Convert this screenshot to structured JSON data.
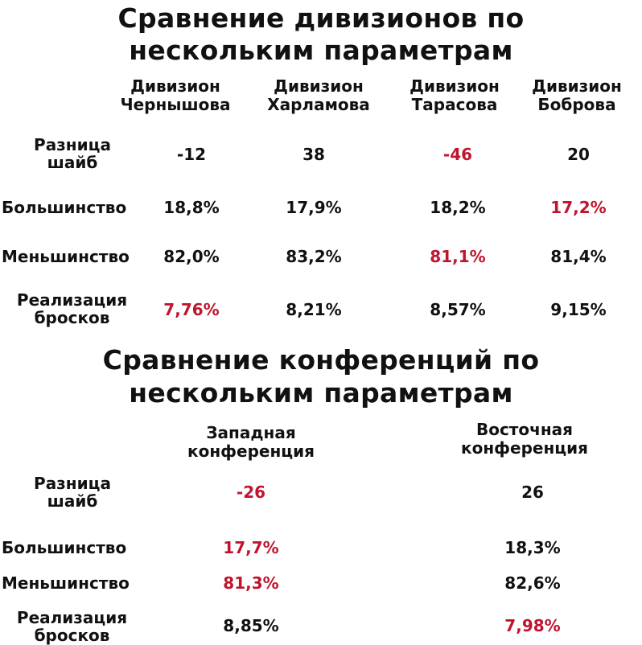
{
  "highlight_color": "#c0152f",
  "divisions": {
    "title_line1": "Сравнение дивизионов по",
    "title_line2": "нескольким параметрам",
    "columns": [
      {
        "line1": "Дивизион",
        "line2": "Чернышова"
      },
      {
        "line1": "Дивизион",
        "line2": "Харламова"
      },
      {
        "line1": "Дивизион",
        "line2": "Тарасова"
      },
      {
        "line1": "Дивизион",
        "line2": "Боброва"
      }
    ],
    "rows": [
      {
        "label_line1": "Разница",
        "label_line2": "шайб",
        "values": [
          "-12",
          "38",
          "-46",
          "20"
        ],
        "highlight": [
          false,
          false,
          true,
          false
        ]
      },
      {
        "label_line1": "Большинство",
        "label_line2": "",
        "values": [
          "18,8%",
          "17,9%",
          "18,2%",
          "17,2%"
        ],
        "highlight": [
          false,
          false,
          false,
          true
        ]
      },
      {
        "label_line1": "Меньшинство",
        "label_line2": "",
        "values": [
          "82,0%",
          "83,2%",
          "81,1%",
          "81,4%"
        ],
        "highlight": [
          false,
          false,
          true,
          false
        ]
      },
      {
        "label_line1": "Реализация",
        "label_line2": "бросков",
        "values": [
          "7,76%",
          "8,21%",
          "8,57%",
          "9,15%"
        ],
        "highlight": [
          true,
          false,
          false,
          false
        ]
      }
    ]
  },
  "conferences": {
    "title_line1": "Сравнение конференций по",
    "title_line2": "нескольким параметрам",
    "columns": [
      {
        "line1": "Западная",
        "line2": "конференция"
      },
      {
        "line1": "Восточная",
        "line2": "конференция"
      }
    ],
    "rows": [
      {
        "label_line1": "Разница",
        "label_line2": "шайб",
        "values": [
          "-26",
          "26"
        ],
        "highlight": [
          true,
          false
        ]
      },
      {
        "label_line1": "Большинство",
        "label_line2": "",
        "values": [
          "17,7%",
          "18,3%"
        ],
        "highlight": [
          true,
          false
        ]
      },
      {
        "label_line1": "Меньшинство",
        "label_line2": "",
        "values": [
          "81,3%",
          "82,6%"
        ],
        "highlight": [
          true,
          false
        ]
      },
      {
        "label_line1": "Реализация",
        "label_line2": "бросков",
        "values": [
          "8,85%",
          "7,98%"
        ],
        "highlight": [
          false,
          true
        ]
      }
    ]
  }
}
